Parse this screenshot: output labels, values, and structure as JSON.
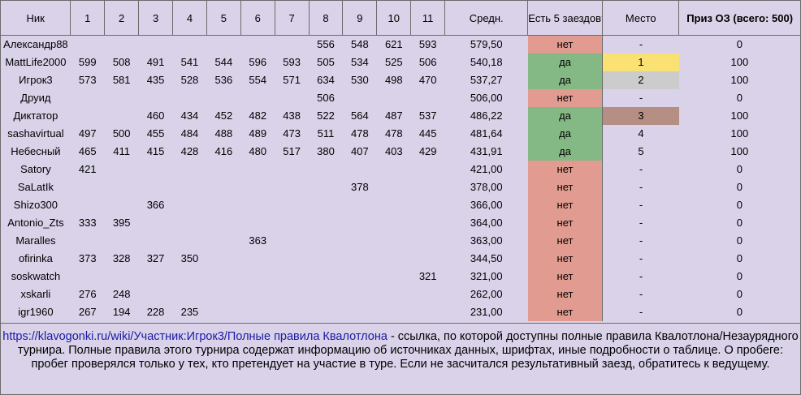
{
  "headers": [
    "Ник",
    "1",
    "2",
    "3",
    "4",
    "5",
    "6",
    "7",
    "8",
    "9",
    "10",
    "11",
    "Средн.",
    "Есть 5 заездов?",
    "Место",
    "Приз ОЗ (всего: 500)"
  ],
  "rows": [
    {
      "nick": "Александр88",
      "scores": [
        "",
        "",
        "",
        "",
        "",
        "",
        "",
        "556",
        "548",
        "621",
        "593"
      ],
      "avg": "579,50",
      "five": "нет",
      "five_yes": false,
      "place": "-",
      "place_style": "",
      "prize": "0"
    },
    {
      "nick": "MattLife2000",
      "scores": [
        "599",
        "508",
        "491",
        "541",
        "544",
        "596",
        "593",
        "505",
        "534",
        "525",
        "506"
      ],
      "avg": "540,18",
      "five": "да",
      "five_yes": true,
      "place": "1",
      "place_style": "gold",
      "prize": "100"
    },
    {
      "nick": "Игрок3",
      "scores": [
        "573",
        "581",
        "435",
        "528",
        "536",
        "554",
        "571",
        "634",
        "530",
        "498",
        "470"
      ],
      "avg": "537,27",
      "five": "да",
      "five_yes": true,
      "place": "2",
      "place_style": "silver",
      "prize": "100"
    },
    {
      "nick": "Друид",
      "scores": [
        "",
        "",
        "",
        "",
        "",
        "",
        "",
        "506",
        "",
        "",
        ""
      ],
      "avg": "506,00",
      "five": "нет",
      "five_yes": false,
      "place": "-",
      "place_style": "",
      "prize": "0"
    },
    {
      "nick": "Диктатор",
      "scores": [
        "",
        "",
        "460",
        "434",
        "452",
        "482",
        "438",
        "522",
        "564",
        "487",
        "537"
      ],
      "avg": "486,22",
      "five": "да",
      "five_yes": true,
      "place": "3",
      "place_style": "bronze",
      "prize": "100"
    },
    {
      "nick": "sashavirtual",
      "scores": [
        "497",
        "500",
        "455",
        "484",
        "488",
        "489",
        "473",
        "511",
        "478",
        "478",
        "445"
      ],
      "avg": "481,64",
      "five": "да",
      "five_yes": true,
      "place": "4",
      "place_style": "",
      "prize": "100"
    },
    {
      "nick": "Небесный",
      "scores": [
        "465",
        "411",
        "415",
        "428",
        "416",
        "480",
        "517",
        "380",
        "407",
        "403",
        "429"
      ],
      "avg": "431,91",
      "five": "да",
      "five_yes": true,
      "place": "5",
      "place_style": "",
      "prize": "100"
    },
    {
      "nick": "Satory",
      "scores": [
        "421",
        "",
        "",
        "",
        "",
        "",
        "",
        "",
        "",
        "",
        ""
      ],
      "avg": "421,00",
      "five": "нет",
      "five_yes": false,
      "place": "-",
      "place_style": "",
      "prize": "0"
    },
    {
      "nick": "SaLatIk",
      "scores": [
        "",
        "",
        "",
        "",
        "",
        "",
        "",
        "",
        "378",
        "",
        ""
      ],
      "avg": "378,00",
      "five": "нет",
      "five_yes": false,
      "place": "-",
      "place_style": "",
      "prize": "0"
    },
    {
      "nick": "Shizo300",
      "scores": [
        "",
        "",
        "366",
        "",
        "",
        "",
        "",
        "",
        "",
        "",
        ""
      ],
      "avg": "366,00",
      "five": "нет",
      "five_yes": false,
      "place": "-",
      "place_style": "",
      "prize": "0"
    },
    {
      "nick": "Antonio_Zts",
      "scores": [
        "333",
        "395",
        "",
        "",
        "",
        "",
        "",
        "",
        "",
        "",
        ""
      ],
      "avg": "364,00",
      "five": "нет",
      "five_yes": false,
      "place": "-",
      "place_style": "",
      "prize": "0"
    },
    {
      "nick": "Maralles",
      "scores": [
        "",
        "",
        "",
        "",
        "",
        "363",
        "",
        "",
        "",
        "",
        ""
      ],
      "avg": "363,00",
      "five": "нет",
      "five_yes": false,
      "place": "-",
      "place_style": "",
      "prize": "0"
    },
    {
      "nick": "ofirinka",
      "scores": [
        "373",
        "328",
        "327",
        "350",
        "",
        "",
        "",
        "",
        "",
        "",
        ""
      ],
      "avg": "344,50",
      "five": "нет",
      "five_yes": false,
      "place": "-",
      "place_style": "",
      "prize": "0"
    },
    {
      "nick": "soskwatch",
      "scores": [
        "",
        "",
        "",
        "",
        "",
        "",
        "",
        "",
        "",
        "",
        "321"
      ],
      "avg": "321,00",
      "five": "нет",
      "five_yes": false,
      "place": "-",
      "place_style": "",
      "prize": "0"
    },
    {
      "nick": "xskarli",
      "scores": [
        "276",
        "248",
        "",
        "",
        "",
        "",
        "",
        "",
        "",
        "",
        ""
      ],
      "avg": "262,00",
      "five": "нет",
      "five_yes": false,
      "place": "-",
      "place_style": "",
      "prize": "0"
    },
    {
      "nick": "igr1960",
      "scores": [
        "267",
        "194",
        "228",
        "235",
        "",
        "",
        "",
        "",
        "",
        "",
        ""
      ],
      "avg": "231,00",
      "five": "нет",
      "five_yes": false,
      "place": "-",
      "place_style": "",
      "prize": "0"
    }
  ],
  "footer": {
    "link": "https://klavogonki.ru/wiki/Участник:Игрок3/Полные правила Квалотлона",
    "text": " - ссылка, по которой доступны полные правила Квалотлона/Незаурядного турнира. Полные правила этого турнира содержат информацию об источниках данных, шрифтах, иные подробности о таблице. О пробеге: пробег проверялся только у тех, кто претендует на участие в туре. Если не засчитался результативный заезд, обратитесь к ведущему."
  },
  "colors": {
    "yes": "#84b985",
    "no": "#e19b90",
    "gold": "#f9e173",
    "silver": "#cccccc",
    "bronze": "#b68f84",
    "background": "#d9d2e9"
  }
}
